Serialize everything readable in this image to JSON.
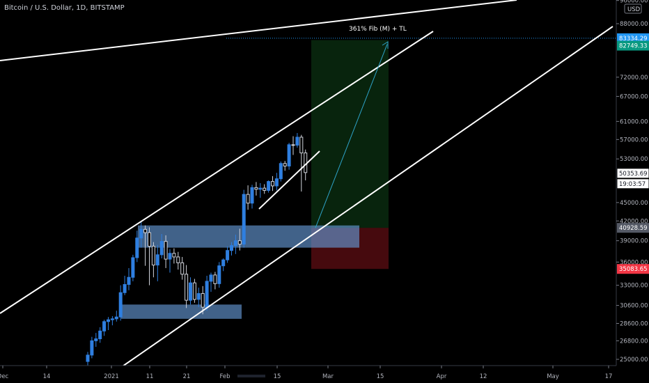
{
  "title": "Bitcoin / U.S. Dollar, 1D, BITSTAMP",
  "currency_button": "USD",
  "chart_data": {
    "type": "candlestick",
    "title": "Bitcoin / U.S. Dollar, 1D, BITSTAMP",
    "y_scale": "log",
    "ylim": [
      24000,
      98000
    ],
    "y_ticks": [
      96000,
      88000,
      72000,
      67000,
      61000,
      57000,
      53000,
      45000,
      42000,
      39000,
      36000,
      33000,
      30600,
      28600,
      26800,
      25000
    ],
    "x_ticks": [
      "Dec",
      "14",
      "2021",
      "11",
      "21",
      "Feb",
      "15",
      "Mar",
      "15",
      "Apr",
      "12",
      "May",
      "17"
    ],
    "price_labels": [
      {
        "value": "83334.29",
        "color": "#2196f3"
      },
      {
        "value": "82749.33",
        "color": "#089981"
      },
      {
        "value": "50353.69",
        "color": "#ffffff"
      },
      {
        "value": "19:03:57",
        "color": "#ffffff"
      },
      {
        "value": "40928.59",
        "color": "#555a66"
      },
      {
        "value": "35083.65",
        "color": "#f23645"
      }
    ],
    "annotation": "361% Fib (M) + TL",
    "trade": {
      "entry": 40928.59,
      "target": 82749.33,
      "stop": 35083.65
    },
    "grid": false,
    "candles": [
      {
        "d": 0,
        "o": 24800,
        "h": 25700,
        "l": 24200,
        "c": 25400
      },
      {
        "d": 1,
        "o": 25400,
        "h": 27200,
        "l": 25100,
        "c": 26800
      },
      {
        "d": 2,
        "o": 26800,
        "h": 27600,
        "l": 26200,
        "c": 27000
      },
      {
        "d": 3,
        "o": 27000,
        "h": 28200,
        "l": 26600,
        "c": 27800
      },
      {
        "d": 4,
        "o": 27800,
        "h": 29000,
        "l": 27300,
        "c": 28800
      },
      {
        "d": 5,
        "o": 28800,
        "h": 29300,
        "l": 27900,
        "c": 29000
      },
      {
        "d": 6,
        "o": 29000,
        "h": 29400,
        "l": 28400,
        "c": 29100
      },
      {
        "d": 7,
        "o": 29100,
        "h": 30000,
        "l": 28800,
        "c": 29300
      },
      {
        "d": 8,
        "o": 29300,
        "h": 33000,
        "l": 28900,
        "c": 32100
      },
      {
        "d": 9,
        "o": 32100,
        "h": 34200,
        "l": 31800,
        "c": 33100
      },
      {
        "d": 10,
        "o": 33100,
        "h": 35200,
        "l": 32400,
        "c": 34000
      },
      {
        "d": 11,
        "o": 34000,
        "h": 37000,
        "l": 33500,
        "c": 36600
      },
      {
        "d": 12,
        "o": 36600,
        "h": 40500,
        "l": 36000,
        "c": 39400
      },
      {
        "d": 13,
        "o": 39400,
        "h": 41900,
        "l": 38000,
        "c": 40700
      },
      {
        "d": 14,
        "o": 40700,
        "h": 41300,
        "l": 35500,
        "c": 40200
      },
      {
        "d": 15,
        "o": 40200,
        "h": 41000,
        "l": 33000,
        "c": 38200
      },
      {
        "d": 16,
        "o": 38200,
        "h": 38800,
        "l": 34000,
        "c": 35600
      },
      {
        "d": 17,
        "o": 35600,
        "h": 38400,
        "l": 33500,
        "c": 37000
      },
      {
        "d": 18,
        "o": 37000,
        "h": 40000,
        "l": 36500,
        "c": 38900
      },
      {
        "d": 19,
        "o": 38900,
        "h": 39800,
        "l": 35200,
        "c": 36400
      },
      {
        "d": 20,
        "o": 36400,
        "h": 37800,
        "l": 34600,
        "c": 37200
      },
      {
        "d": 21,
        "o": 37200,
        "h": 37900,
        "l": 35800,
        "c": 36700
      },
      {
        "d": 22,
        "o": 36700,
        "h": 37400,
        "l": 35000,
        "c": 35900
      },
      {
        "d": 23,
        "o": 35900,
        "h": 36700,
        "l": 33700,
        "c": 34400
      },
      {
        "d": 24,
        "o": 34400,
        "h": 35600,
        "l": 30300,
        "c": 31200
      },
      {
        "d": 25,
        "o": 31200,
        "h": 34000,
        "l": 30700,
        "c": 33300
      },
      {
        "d": 26,
        "o": 33300,
        "h": 33800,
        "l": 30900,
        "c": 31300
      },
      {
        "d": 27,
        "o": 31300,
        "h": 32700,
        "l": 30400,
        "c": 32000
      },
      {
        "d": 28,
        "o": 32000,
        "h": 32900,
        "l": 29600,
        "c": 30400
      },
      {
        "d": 29,
        "o": 30400,
        "h": 34200,
        "l": 30000,
        "c": 33500
      },
      {
        "d": 30,
        "o": 33500,
        "h": 34600,
        "l": 32200,
        "c": 34300
      },
      {
        "d": 31,
        "o": 34300,
        "h": 34700,
        "l": 32500,
        "c": 33200
      },
      {
        "d": 32,
        "o": 33200,
        "h": 36000,
        "l": 32700,
        "c": 35500
      },
      {
        "d": 33,
        "o": 35500,
        "h": 36500,
        "l": 34800,
        "c": 36300
      },
      {
        "d": 34,
        "o": 36300,
        "h": 38200,
        "l": 35900,
        "c": 37600
      },
      {
        "d": 35,
        "o": 37600,
        "h": 38800,
        "l": 36900,
        "c": 38300
      },
      {
        "d": 36,
        "o": 38300,
        "h": 39900,
        "l": 37100,
        "c": 39000
      },
      {
        "d": 37,
        "o": 39000,
        "h": 40800,
        "l": 37600,
        "c": 38500
      },
      {
        "d": 38,
        "o": 38500,
        "h": 47200,
        "l": 38000,
        "c": 46400
      },
      {
        "d": 39,
        "o": 46400,
        "h": 48000,
        "l": 43800,
        "c": 44900
      },
      {
        "d": 40,
        "o": 44900,
        "h": 48100,
        "l": 44000,
        "c": 47600
      },
      {
        "d": 41,
        "o": 47600,
        "h": 48600,
        "l": 46200,
        "c": 47300
      },
      {
        "d": 42,
        "o": 47300,
        "h": 48400,
        "l": 45800,
        "c": 47500
      },
      {
        "d": 43,
        "o": 47500,
        "h": 48200,
        "l": 46500,
        "c": 47100
      },
      {
        "d": 44,
        "o": 47100,
        "h": 48900,
        "l": 46700,
        "c": 48700
      },
      {
        "d": 45,
        "o": 48700,
        "h": 49700,
        "l": 47000,
        "c": 47900
      },
      {
        "d": 46,
        "o": 47900,
        "h": 50300,
        "l": 47100,
        "c": 49200
      },
      {
        "d": 47,
        "o": 49200,
        "h": 52500,
        "l": 48700,
        "c": 52100
      },
      {
        "d": 48,
        "o": 52100,
        "h": 52600,
        "l": 50700,
        "c": 51600
      },
      {
        "d": 49,
        "o": 51600,
        "h": 56300,
        "l": 50900,
        "c": 55900
      },
      {
        "d": 50,
        "o": 55900,
        "h": 57700,
        "l": 53800,
        "c": 55800
      },
      {
        "d": 51,
        "o": 55800,
        "h": 58400,
        "l": 55300,
        "c": 57500
      },
      {
        "d": 52,
        "o": 57500,
        "h": 58000,
        "l": 46900,
        "c": 54200
      },
      {
        "d": 53,
        "o": 54200,
        "h": 54900,
        "l": 48900,
        "c": 50353.69
      }
    ]
  }
}
